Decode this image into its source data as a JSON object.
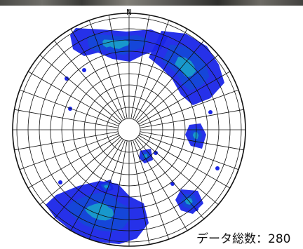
{
  "chart_data": {
    "type": "stereonet-density",
    "north_label": "N",
    "count_label": "データ総数：280",
    "colors": {
      "density_low": "#1a26e8",
      "density_mid": "#1448d8",
      "density_high": "#19a7c9",
      "net_lines": "#111111",
      "background": "#ffffff"
    }
  }
}
